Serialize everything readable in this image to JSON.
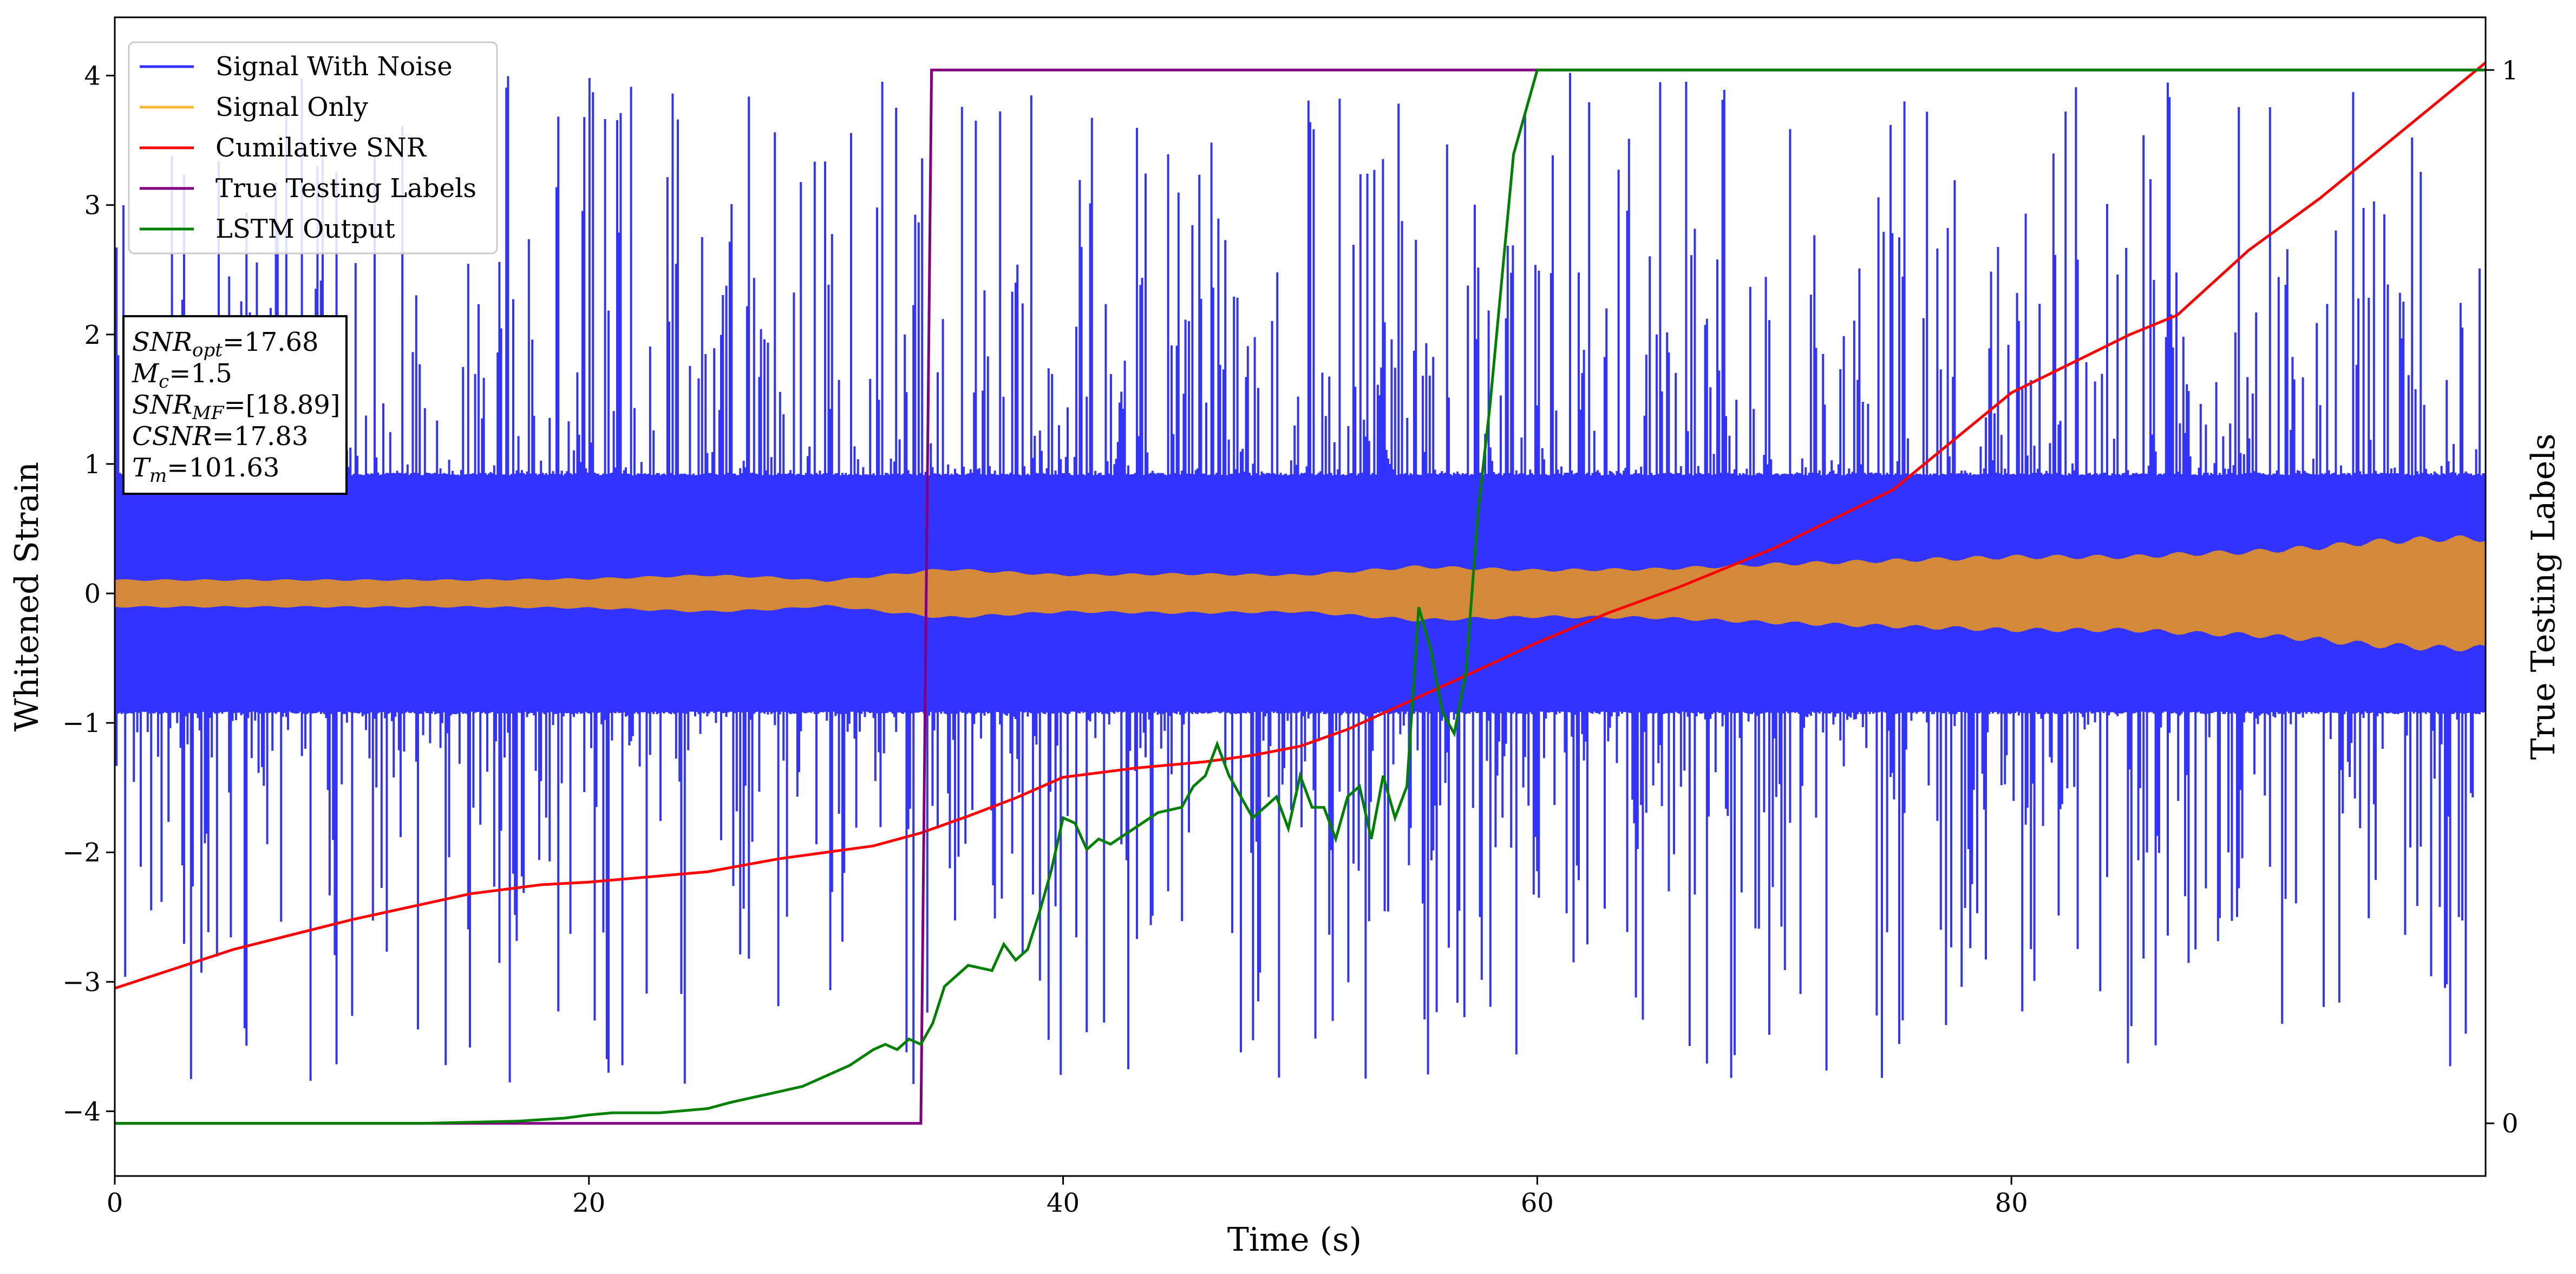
{
  "chart_data": {
    "type": "line",
    "xlabel": "Time (s)",
    "ylabel": "Whitened Strain",
    "y2label": "True Testing Labels",
    "xlim": [
      0,
      100
    ],
    "ylim": [
      -4.5,
      4.45
    ],
    "y2lim": [
      -0.05,
      1.05
    ],
    "xticks": [
      0,
      20,
      40,
      60,
      80
    ],
    "xtick_labels": [
      "0",
      "20",
      "40",
      "60",
      "80"
    ],
    "yticks": [
      -4,
      -3,
      -2,
      -1,
      0,
      1,
      2,
      3,
      4
    ],
    "ytick_labels": [
      "−4",
      "−3",
      "−2",
      "−1",
      "0",
      "1",
      "2",
      "3",
      "4"
    ],
    "y2ticks": [
      0,
      1
    ],
    "y2tick_labels": [
      "0",
      "1"
    ],
    "grid": false,
    "legend_position": "top-left",
    "colors": {
      "signal_noise": "#3333ff",
      "signal_only": "#ffb833",
      "signal_fill": "#d4893a",
      "snr": "#ff0000",
      "labels": "#800080",
      "lstm": "#008000"
    },
    "series": [
      {
        "name": "Signal With Noise",
        "key": "signal_noise",
        "axis": "left",
        "description": "dense noise, amplitude mostly within about ±1, spikes to about ±4",
        "noise_core_amplitude": 0.95,
        "spike_max": 4.1,
        "spike_min": -3.85
      },
      {
        "name": "Signal Only",
        "key": "signal_only",
        "axis": "left",
        "envelope_t": [
          0,
          15,
          20,
          25,
          28,
          30,
          35,
          40,
          45,
          50,
          55,
          60,
          65,
          70,
          75,
          80,
          85,
          88,
          90,
          93,
          95,
          98,
          100
        ],
        "envelope_a": [
          0.11,
          0.11,
          0.12,
          0.15,
          0.13,
          0.1,
          0.2,
          0.15,
          0.16,
          0.15,
          0.22,
          0.19,
          0.2,
          0.24,
          0.27,
          0.3,
          0.3,
          0.33,
          0.34,
          0.38,
          0.42,
          0.45,
          0.45
        ]
      },
      {
        "name": "Cumilative SNR",
        "key": "snr",
        "axis": "left",
        "x": [
          0,
          5,
          10,
          15,
          18,
          20,
          25,
          28,
          30,
          32,
          34,
          36,
          38,
          40,
          43,
          46,
          48,
          50,
          52,
          55,
          58,
          60,
          63,
          66,
          70,
          75,
          80,
          85,
          87,
          90,
          93,
          95,
          97,
          100
        ],
        "y": [
          -3.05,
          -2.75,
          -2.52,
          -2.32,
          -2.25,
          -2.23,
          -2.15,
          -2.05,
          -2.0,
          -1.95,
          -1.85,
          -1.72,
          -1.58,
          -1.42,
          -1.35,
          -1.3,
          -1.25,
          -1.18,
          -1.05,
          -0.8,
          -0.55,
          -0.38,
          -0.15,
          0.05,
          0.35,
          0.8,
          1.55,
          2.0,
          2.15,
          2.65,
          3.05,
          3.35,
          3.65,
          4.1
        ]
      },
      {
        "name": "True Testing Labels",
        "key": "labels",
        "axis": "right",
        "x": [
          0,
          34.0,
          34.45,
          100
        ],
        "y": [
          0,
          0,
          1,
          1
        ]
      },
      {
        "name": "LSTM Output",
        "key": "lstm",
        "axis": "right",
        "x": [
          0,
          13,
          17,
          19,
          20,
          21,
          23,
          24,
          25,
          26,
          27,
          28,
          29,
          30,
          31,
          32,
          32.5,
          33,
          33.5,
          34,
          34.5,
          35,
          36,
          37,
          37.5,
          38,
          38.5,
          39,
          39.5,
          40,
          40.5,
          41,
          41.5,
          42,
          43,
          44,
          45,
          45.5,
          46,
          46.5,
          47,
          47.5,
          48,
          48.5,
          49,
          49.5,
          50,
          50.5,
          51,
          51.5,
          52,
          52.5,
          53,
          53.5,
          54,
          54.5,
          55,
          55.5,
          56,
          56.5,
          57,
          57.5,
          58,
          58.5,
          59,
          60,
          61,
          62,
          64,
          65,
          67,
          70,
          100
        ],
        "y": [
          0,
          0,
          0.002,
          0.005,
          0.008,
          0.01,
          0.01,
          0.012,
          0.014,
          0.02,
          0.025,
          0.03,
          0.035,
          0.045,
          0.055,
          0.07,
          0.075,
          0.07,
          0.08,
          0.075,
          0.095,
          0.13,
          0.15,
          0.145,
          0.17,
          0.155,
          0.165,
          0.2,
          0.24,
          0.29,
          0.285,
          0.26,
          0.27,
          0.265,
          0.28,
          0.295,
          0.3,
          0.32,
          0.33,
          0.36,
          0.33,
          0.31,
          0.29,
          0.3,
          0.31,
          0.28,
          0.33,
          0.3,
          0.3,
          0.27,
          0.31,
          0.32,
          0.27,
          0.33,
          0.29,
          0.32,
          0.49,
          0.45,
          0.39,
          0.37,
          0.43,
          0.58,
          0.68,
          0.8,
          0.92,
          1.0,
          1.0,
          1.0,
          1.0,
          1.0,
          1.0,
          1.0,
          1.0
        ]
      }
    ],
    "annotation": {
      "lines": [
        {
          "name": "SNR",
          "sub": "opt",
          "value": "=17.68"
        },
        {
          "name": "M",
          "sub": "c",
          "value": "=1.5"
        },
        {
          "name": "SNR",
          "sub": "MF",
          "value": "=[18.89]"
        },
        {
          "name": "CSNR",
          "sub": "",
          "value": "=17.83"
        },
        {
          "name": "T",
          "sub": "m",
          "value": "=101.63"
        }
      ]
    }
  }
}
